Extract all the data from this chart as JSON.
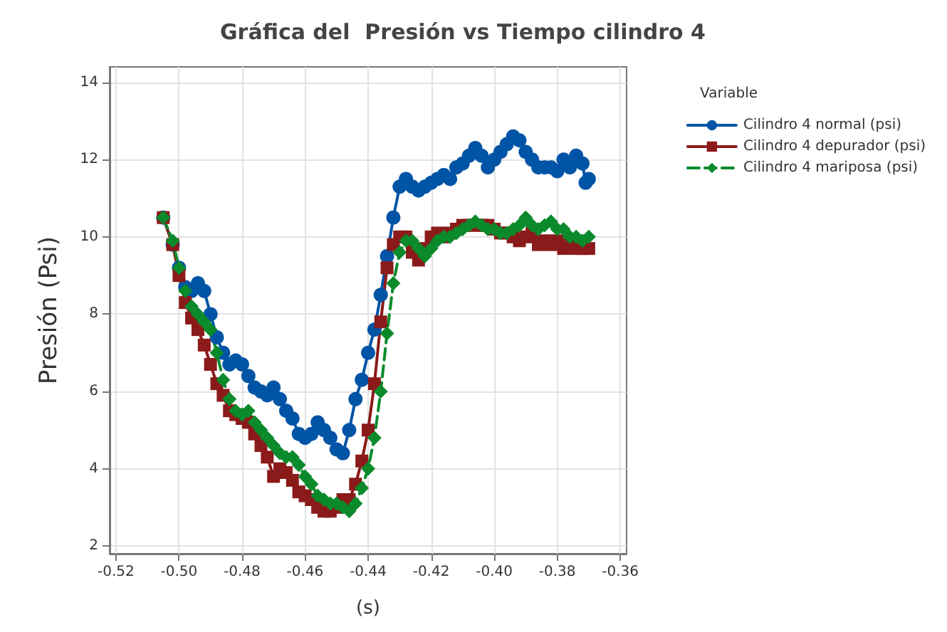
{
  "chart_data": {
    "type": "line",
    "title": "Gráfica del  Presión vs Tiempo cilindro 4",
    "xlabel": "(s)",
    "ylabel": "Presión (Psi)",
    "legend_title": "Variable",
    "legend": "top right",
    "grid": true,
    "xlim": [
      -0.522,
      -0.358
    ],
    "ylim": [
      1.8,
      14.4
    ],
    "xticks": [
      {
        "value": -0.52,
        "label": "-0.52"
      },
      {
        "value": -0.5,
        "label": "-0.50"
      },
      {
        "value": -0.48,
        "label": "-0.48"
      },
      {
        "value": -0.46,
        "label": "-0.46"
      },
      {
        "value": -0.44,
        "label": "-0.44"
      },
      {
        "value": -0.42,
        "label": "-0.42"
      },
      {
        "value": -0.4,
        "label": "-0.40"
      },
      {
        "value": -0.38,
        "label": "-0.38"
      },
      {
        "value": -0.36,
        "label": "-0.36"
      }
    ],
    "yticks": [
      2,
      4,
      6,
      8,
      10,
      12,
      14
    ],
    "series": [
      {
        "name": "Cilindro 4 normal (psi)",
        "color": "#0054a6",
        "marker": "circle",
        "line_style": "solid",
        "x": [
          -0.505,
          -0.502,
          -0.5,
          -0.498,
          -0.496,
          -0.494,
          -0.492,
          -0.49,
          -0.488,
          -0.486,
          -0.484,
          -0.482,
          -0.48,
          -0.478,
          -0.476,
          -0.474,
          -0.472,
          -0.47,
          -0.468,
          -0.466,
          -0.464,
          -0.462,
          -0.46,
          -0.458,
          -0.456,
          -0.454,
          -0.452,
          -0.45,
          -0.448,
          -0.446,
          -0.444,
          -0.442,
          -0.44,
          -0.438,
          -0.436,
          -0.434,
          -0.432,
          -0.43,
          -0.428,
          -0.426,
          -0.424,
          -0.422,
          -0.42,
          -0.418,
          -0.416,
          -0.414,
          -0.412,
          -0.41,
          -0.408,
          -0.406,
          -0.404,
          -0.402,
          -0.4,
          -0.398,
          -0.396,
          -0.394,
          -0.392,
          -0.39,
          -0.388,
          -0.386,
          -0.384,
          -0.382,
          -0.38,
          -0.378,
          -0.376,
          -0.374,
          -0.372,
          -0.371,
          -0.37
        ],
        "values": [
          10.5,
          9.8,
          9.2,
          8.7,
          8.6,
          8.8,
          8.6,
          8.0,
          7.4,
          7.0,
          6.7,
          6.8,
          6.7,
          6.4,
          6.1,
          6.0,
          5.9,
          6.1,
          5.8,
          5.5,
          5.3,
          4.9,
          4.8,
          4.9,
          5.2,
          5.0,
          4.8,
          4.5,
          4.4,
          5.0,
          5.8,
          6.3,
          7.0,
          7.6,
          8.5,
          9.5,
          10.5,
          11.3,
          11.5,
          11.3,
          11.2,
          11.3,
          11.4,
          11.5,
          11.6,
          11.5,
          11.8,
          11.9,
          12.1,
          12.3,
          12.1,
          11.8,
          12.0,
          12.2,
          12.4,
          12.6,
          12.5,
          12.2,
          12.0,
          11.8,
          11.8,
          11.8,
          11.7,
          12.0,
          11.8,
          12.1,
          11.9,
          11.4,
          11.5
        ]
      },
      {
        "name": "Cilindro 4 depurador (psi)",
        "color": "#8b1a1a",
        "marker": "square",
        "line_style": "solid",
        "x": [
          -0.505,
          -0.502,
          -0.5,
          -0.498,
          -0.496,
          -0.494,
          -0.492,
          -0.49,
          -0.488,
          -0.486,
          -0.484,
          -0.482,
          -0.48,
          -0.478,
          -0.476,
          -0.474,
          -0.472,
          -0.47,
          -0.468,
          -0.466,
          -0.464,
          -0.462,
          -0.46,
          -0.458,
          -0.456,
          -0.454,
          -0.452,
          -0.45,
          -0.448,
          -0.446,
          -0.444,
          -0.442,
          -0.44,
          -0.438,
          -0.436,
          -0.434,
          -0.432,
          -0.43,
          -0.428,
          -0.426,
          -0.424,
          -0.422,
          -0.42,
          -0.418,
          -0.416,
          -0.414,
          -0.412,
          -0.41,
          -0.408,
          -0.406,
          -0.404,
          -0.402,
          -0.4,
          -0.398,
          -0.396,
          -0.394,
          -0.392,
          -0.39,
          -0.388,
          -0.386,
          -0.384,
          -0.382,
          -0.38,
          -0.378,
          -0.376,
          -0.374,
          -0.372,
          -0.37
        ],
        "values": [
          10.5,
          9.8,
          9.0,
          8.3,
          7.9,
          7.6,
          7.2,
          6.7,
          6.2,
          5.9,
          5.5,
          5.4,
          5.3,
          5.2,
          4.9,
          4.6,
          4.3,
          3.8,
          4.0,
          3.9,
          3.7,
          3.4,
          3.3,
          3.2,
          3.0,
          2.9,
          2.9,
          3.0,
          3.2,
          3.2,
          3.6,
          4.2,
          5.0,
          6.2,
          7.8,
          9.2,
          9.8,
          10.0,
          10.0,
          9.6,
          9.4,
          9.7,
          10.0,
          10.1,
          10.0,
          10.1,
          10.2,
          10.3,
          10.3,
          10.3,
          10.3,
          10.3,
          10.2,
          10.1,
          10.1,
          10.0,
          9.9,
          10.0,
          10.1,
          9.8,
          9.9,
          9.8,
          9.9,
          9.7,
          9.8,
          9.7,
          9.7,
          9.7
        ]
      },
      {
        "name": "Cilindro 4 mariposa (psi)",
        "color": "#0a8a2a",
        "marker": "diamond",
        "line_style": "dashed",
        "x": [
          -0.505,
          -0.502,
          -0.5,
          -0.498,
          -0.496,
          -0.494,
          -0.492,
          -0.49,
          -0.488,
          -0.486,
          -0.484,
          -0.482,
          -0.48,
          -0.478,
          -0.476,
          -0.474,
          -0.472,
          -0.47,
          -0.468,
          -0.466,
          -0.464,
          -0.462,
          -0.46,
          -0.458,
          -0.456,
          -0.454,
          -0.452,
          -0.45,
          -0.448,
          -0.446,
          -0.444,
          -0.442,
          -0.44,
          -0.438,
          -0.436,
          -0.434,
          -0.432,
          -0.43,
          -0.428,
          -0.426,
          -0.424,
          -0.422,
          -0.42,
          -0.418,
          -0.416,
          -0.414,
          -0.412,
          -0.41,
          -0.408,
          -0.406,
          -0.404,
          -0.402,
          -0.4,
          -0.398,
          -0.396,
          -0.394,
          -0.392,
          -0.39,
          -0.388,
          -0.386,
          -0.384,
          -0.382,
          -0.38,
          -0.378,
          -0.376,
          -0.374,
          -0.372,
          -0.37
        ],
        "values": [
          10.5,
          9.9,
          9.2,
          8.6,
          8.2,
          8.0,
          7.8,
          7.6,
          7.0,
          6.3,
          5.8,
          5.5,
          5.4,
          5.5,
          5.2,
          5.0,
          4.8,
          4.6,
          4.4,
          4.3,
          4.3,
          4.1,
          3.8,
          3.6,
          3.3,
          3.2,
          3.1,
          3.1,
          3.0,
          2.9,
          3.1,
          3.5,
          4.0,
          4.8,
          6.0,
          7.5,
          8.8,
          9.6,
          9.9,
          9.9,
          9.7,
          9.5,
          9.7,
          9.9,
          10.0,
          10.0,
          10.1,
          10.2,
          10.3,
          10.4,
          10.3,
          10.2,
          10.2,
          10.1,
          10.1,
          10.2,
          10.3,
          10.5,
          10.3,
          10.2,
          10.3,
          10.4,
          10.2,
          10.2,
          10.0,
          10.0,
          9.9,
          10.0
        ]
      }
    ]
  }
}
